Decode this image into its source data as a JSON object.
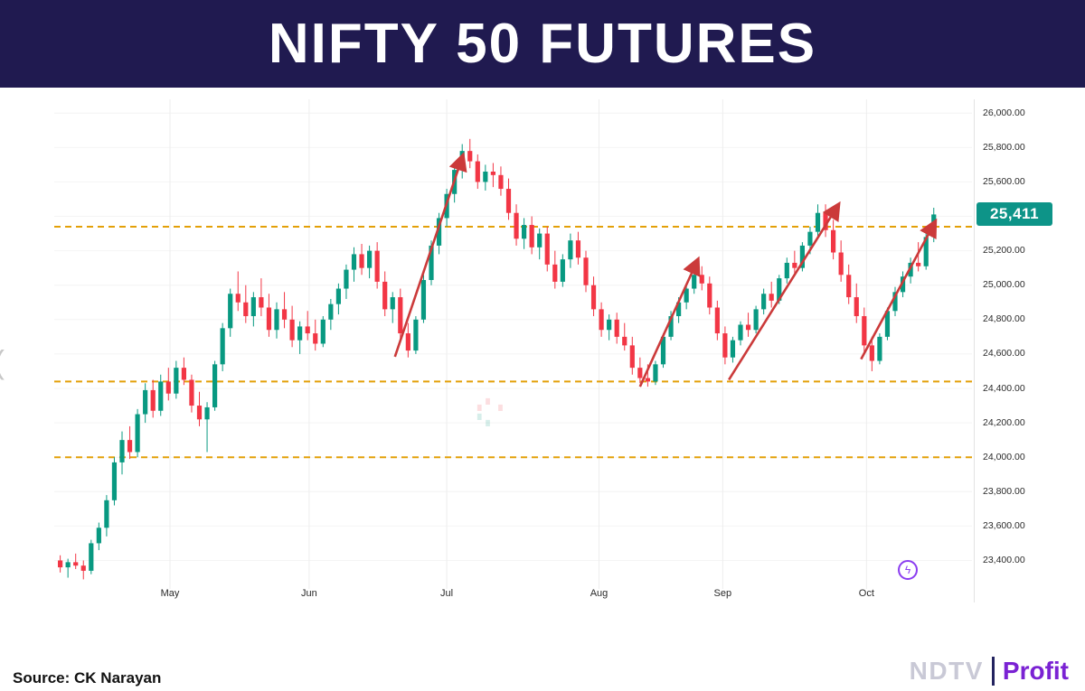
{
  "page": {
    "title": "NIFTY 50 FUTURES"
  },
  "footer": {
    "source": "Source: CK Narayan",
    "brand": {
      "ndtv": "NDTV",
      "profit": "Profit"
    }
  },
  "overlays": {
    "left_edge_glyph": "(",
    "replay_icon_glyph": "ϟ"
  },
  "chart_data": {
    "type": "candlestick",
    "title": "NIFTY 50 FUTURES",
    "grid": true,
    "colors": {
      "up": "#089981",
      "down": "#f23645",
      "arrow": "#cb3a3a",
      "level": "#e3a008",
      "banner": "#201a50",
      "tag_bg": "#0d9488"
    },
    "price_axis": {
      "min": 23280,
      "max": 26080,
      "tick_step": 200,
      "ticks": [
        {
          "price": 26000,
          "label": "26,000.00"
        },
        {
          "price": 25800,
          "label": "25,800.00"
        },
        {
          "price": 25600,
          "label": "25,600.00"
        },
        {
          "price": 25400,
          "label": "25,400.00"
        },
        {
          "price": 25200,
          "label": "25,200.00"
        },
        {
          "price": 25000,
          "label": "25,000.00"
        },
        {
          "price": 24800,
          "label": "24,800.00"
        },
        {
          "price": 24600,
          "label": "24,600.00"
        },
        {
          "price": 24400,
          "label": "24,400.00"
        },
        {
          "price": 24200,
          "label": "24,200.00"
        },
        {
          "price": 24000,
          "label": "24,000.00"
        },
        {
          "price": 23800,
          "label": "23,800.00"
        },
        {
          "price": 23600,
          "label": "23,600.00"
        },
        {
          "price": 23400,
          "label": "23,400.00"
        }
      ]
    },
    "x_ticks": [
      {
        "label": "May",
        "i": 14.5
      },
      {
        "label": "Jun",
        "i": 32.5
      },
      {
        "label": "Jul",
        "i": 50.3
      },
      {
        "label": "Aug",
        "i": 70
      },
      {
        "label": "Sep",
        "i": 86
      },
      {
        "label": "Oct",
        "i": 104.6
      }
    ],
    "levels": [
      {
        "price": 25340
      },
      {
        "price": 24440
      },
      {
        "price": 24000
      }
    ],
    "arrows": [
      {
        "from_i": 43.6,
        "from_price": 24584,
        "to_i": 52.4,
        "to_price": 25755
      },
      {
        "from_i": 75.3,
        "from_price": 24410,
        "to_i": 82.8,
        "to_price": 25150
      },
      {
        "from_i": 86.8,
        "from_price": 24450,
        "to_i": 101.0,
        "to_price": 25470
      },
      {
        "from_i": 103.9,
        "from_price": 24570,
        "to_i": 113.5,
        "to_price": 25370
      }
    ],
    "last_price": 25411,
    "last_price_label": "25,411",
    "candles": [
      [
        23400,
        23430,
        23330,
        23360
      ],
      [
        23360,
        23410,
        23300,
        23390
      ],
      [
        23390,
        23440,
        23350,
        23370
      ],
      [
        23370,
        23400,
        23290,
        23340
      ],
      [
        23340,
        23520,
        23320,
        23500
      ],
      [
        23500,
        23620,
        23460,
        23590
      ],
      [
        23590,
        23780,
        23540,
        23750
      ],
      [
        23750,
        24000,
        23720,
        23970
      ],
      [
        23970,
        24150,
        23900,
        24100
      ],
      [
        24100,
        24180,
        23990,
        24030
      ],
      [
        24030,
        24280,
        24000,
        24250
      ],
      [
        24250,
        24430,
        24200,
        24390
      ],
      [
        24390,
        24450,
        24230,
        24270
      ],
      [
        24270,
        24480,
        24240,
        24440
      ],
      [
        24440,
        24520,
        24330,
        24370
      ],
      [
        24370,
        24560,
        24340,
        24520
      ],
      [
        24520,
        24580,
        24420,
        24450
      ],
      [
        24450,
        24480,
        24260,
        24300
      ],
      [
        24300,
        24380,
        24180,
        24220
      ],
      [
        24220,
        24320,
        24030,
        24290
      ],
      [
        24290,
        24560,
        24270,
        24540
      ],
      [
        24540,
        24780,
        24500,
        24750
      ],
      [
        24750,
        24980,
        24700,
        24950
      ],
      [
        24950,
        25080,
        24850,
        24900
      ],
      [
        24900,
        25000,
        24780,
        24820
      ],
      [
        24820,
        24960,
        24760,
        24930
      ],
      [
        24930,
        25040,
        24820,
        24870
      ],
      [
        24870,
        24950,
        24700,
        24740
      ],
      [
        24740,
        24900,
        24690,
        24860
      ],
      [
        24860,
        24960,
        24750,
        24800
      ],
      [
        24800,
        24880,
        24640,
        24680
      ],
      [
        24680,
        24790,
        24600,
        24760
      ],
      [
        24760,
        24850,
        24680,
        24720
      ],
      [
        24720,
        24800,
        24620,
        24660
      ],
      [
        24660,
        24820,
        24640,
        24800
      ],
      [
        24800,
        24920,
        24740,
        24890
      ],
      [
        24890,
        25010,
        24830,
        24980
      ],
      [
        24980,
        25120,
        24920,
        25090
      ],
      [
        25090,
        25220,
        25020,
        25180
      ],
      [
        25180,
        25240,
        25060,
        25100
      ],
      [
        25100,
        25230,
        25040,
        25200
      ],
      [
        25200,
        25250,
        24980,
        25020
      ],
      [
        25020,
        25080,
        24820,
        24860
      ],
      [
        24860,
        24960,
        24780,
        24930
      ],
      [
        24930,
        24980,
        24680,
        24720
      ],
      [
        24720,
        24780,
        24580,
        24620
      ],
      [
        24620,
        24820,
        24600,
        24800
      ],
      [
        24800,
        25060,
        24780,
        25030
      ],
      [
        25030,
        25260,
        25000,
        25230
      ],
      [
        25230,
        25420,
        25180,
        25390
      ],
      [
        25390,
        25560,
        25340,
        25530
      ],
      [
        25530,
        25700,
        25480,
        25670
      ],
      [
        25670,
        25820,
        25620,
        25780
      ],
      [
        25780,
        25850,
        25680,
        25720
      ],
      [
        25720,
        25760,
        25560,
        25600
      ],
      [
        25600,
        25700,
        25550,
        25660
      ],
      [
        25660,
        25710,
        25570,
        25640
      ],
      [
        25640,
        25690,
        25520,
        25560
      ],
      [
        25560,
        25620,
        25380,
        25420
      ],
      [
        25420,
        25470,
        25230,
        25270
      ],
      [
        25270,
        25390,
        25210,
        25350
      ],
      [
        25350,
        25400,
        25180,
        25220
      ],
      [
        25220,
        25330,
        25150,
        25300
      ],
      [
        25300,
        25340,
        25080,
        25120
      ],
      [
        25120,
        25200,
        24980,
        25020
      ],
      [
        25020,
        25180,
        24990,
        25150
      ],
      [
        25150,
        25300,
        25100,
        25260
      ],
      [
        25260,
        25310,
        25120,
        25160
      ],
      [
        25160,
        25200,
        24960,
        25000
      ],
      [
        25000,
        25050,
        24820,
        24860
      ],
      [
        24860,
        24900,
        24700,
        24740
      ],
      [
        24740,
        24830,
        24680,
        24800
      ],
      [
        24800,
        24840,
        24660,
        24700
      ],
      [
        24700,
        24780,
        24620,
        24650
      ],
      [
        24650,
        24700,
        24480,
        24520
      ],
      [
        24520,
        24580,
        24430,
        24460
      ],
      [
        24460,
        24540,
        24410,
        24440
      ],
      [
        24440,
        24560,
        24420,
        24540
      ],
      [
        24540,
        24720,
        24520,
        24700
      ],
      [
        24700,
        24850,
        24680,
        24820
      ],
      [
        24820,
        24930,
        24780,
        24900
      ],
      [
        24900,
        25000,
        24860,
        24980
      ],
      [
        24980,
        25090,
        24950,
        25060
      ],
      [
        25060,
        25110,
        24970,
        25010
      ],
      [
        25010,
        25050,
        24830,
        24870
      ],
      [
        24870,
        24910,
        24680,
        24720
      ],
      [
        24720,
        24760,
        24540,
        24580
      ],
      [
        24580,
        24700,
        24550,
        24680
      ],
      [
        24680,
        24790,
        24650,
        24770
      ],
      [
        24770,
        24840,
        24700,
        24740
      ],
      [
        24740,
        24880,
        24720,
        24860
      ],
      [
        24860,
        24980,
        24830,
        24950
      ],
      [
        24950,
        25020,
        24870,
        24910
      ],
      [
        24910,
        25060,
        24890,
        25040
      ],
      [
        25040,
        25160,
        25010,
        25130
      ],
      [
        25130,
        25200,
        25060,
        25100
      ],
      [
        25100,
        25250,
        25080,
        25230
      ],
      [
        25230,
        25340,
        25180,
        25310
      ],
      [
        25310,
        25470,
        25280,
        25420
      ],
      [
        25420,
        25470,
        25280,
        25320
      ],
      [
        25320,
        25380,
        25150,
        25190
      ],
      [
        25190,
        25260,
        25020,
        25060
      ],
      [
        25060,
        25120,
        24890,
        24930
      ],
      [
        24930,
        25010,
        24780,
        24820
      ],
      [
        24820,
        24870,
        24610,
        24650
      ],
      [
        24650,
        24700,
        24500,
        24560
      ],
      [
        24560,
        24720,
        24540,
        24700
      ],
      [
        24700,
        24870,
        24680,
        24850
      ],
      [
        24850,
        24990,
        24820,
        24960
      ],
      [
        24960,
        25080,
        24930,
        25050
      ],
      [
        25050,
        25160,
        25010,
        25130
      ],
      [
        25130,
        25250,
        25080,
        25110
      ],
      [
        25110,
        25300,
        25090,
        25280
      ],
      [
        25280,
        25450,
        25250,
        25411
      ]
    ]
  }
}
